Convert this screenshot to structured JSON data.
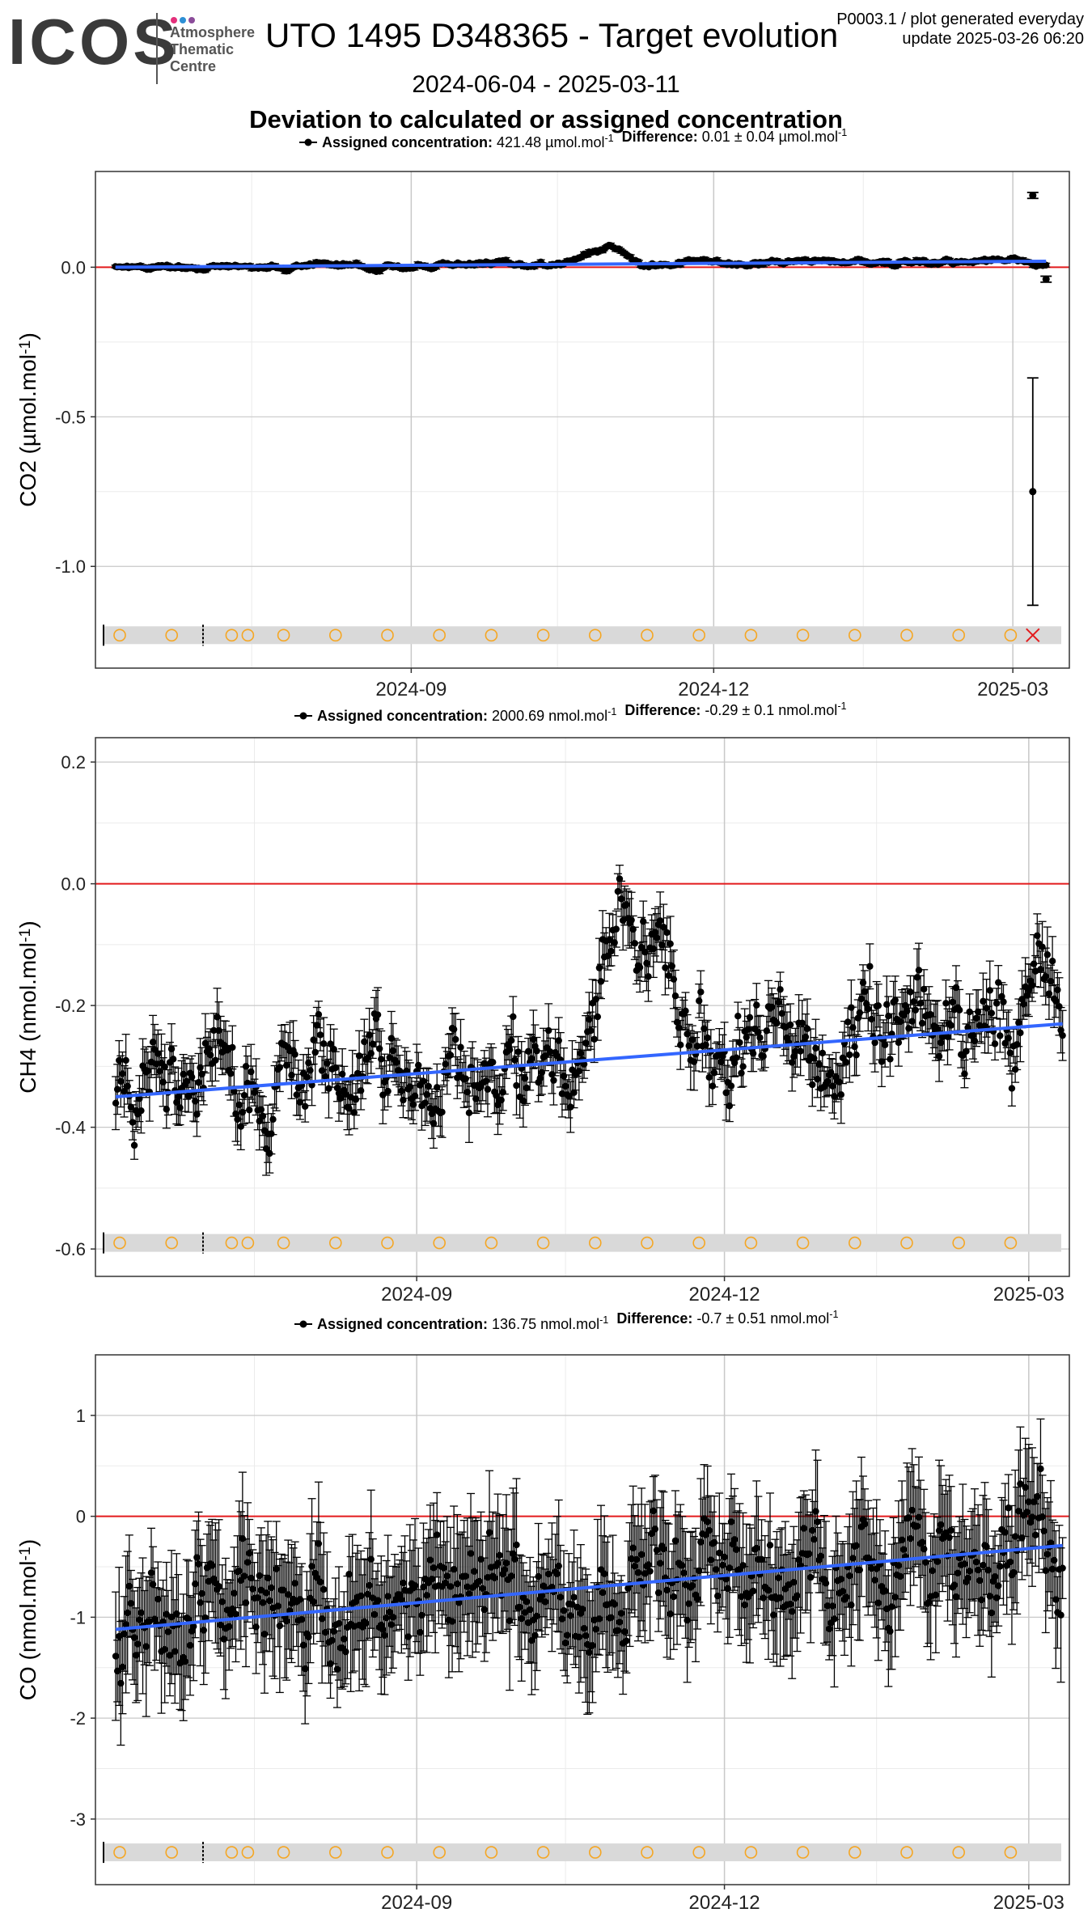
{
  "header": {
    "logo_text": "ICOS",
    "logo_sub_lines": [
      "Atmosphere",
      "Thematic",
      "Centre"
    ],
    "logo_dot_colors": [
      "#e4307b",
      "#2d8fd5",
      "#8b4c9a"
    ],
    "title": "UTO 1495 D348365 - Target evolution",
    "meta_line1": "P0003.1 / plot generated everyday",
    "meta_line2": "update  2025-03-26 06:20",
    "date_range": "2024-06-04 - 2025-03-11",
    "subtitle": "Deviation to calculated or assigned concentration"
  },
  "colors": {
    "points": "#000000",
    "zero_line": "#e31a1c",
    "trend": "#3366ff",
    "flag_band": "#d9d9d9",
    "flag_marker": "#f5a623",
    "flag_cross": "#e31a1c",
    "grid_major": "#c8c8c8",
    "grid_minor": "#ebebeb"
  },
  "chart_data": [
    {
      "type": "scatter",
      "ylabel": "CO2 (µmol.mol-1)",
      "legend_label": "Assigned concentration:",
      "legend_value": "421.48 µmol.mol-1",
      "legend_diff_label": "Difference:",
      "legend_diff_value": "0.01 ± 0.04 µmol.mol-1",
      "x_ticks": [
        "2024-09",
        "2024-12",
        "2025-03"
      ],
      "y_ticks": [
        0.0,
        -0.5,
        -1.0
      ],
      "y_tick_labels": [
        "0.0",
        "-0.5",
        "-1.0"
      ],
      "ylim": [
        -1.34,
        0.32
      ],
      "xlim": [
        "2024-05-29",
        "2025-03-18"
      ],
      "zero_line": 0,
      "trend": {
        "start": [
          "2024-06-04",
          0.0
        ],
        "end": [
          "2025-03-11",
          0.02
        ]
      },
      "series": {
        "base": 0.0,
        "drift": 0.02,
        "noise": 0.008,
        "err": 0.006,
        "bumps": [
          [
            "2024-11-01",
            0.05
          ],
          [
            "2024-10-25",
            0.03
          ]
        ]
      },
      "extra_points": [
        {
          "x": "2025-03-07",
          "y": 0.24,
          "err": 0.01
        },
        {
          "x": "2025-03-07",
          "y": -0.75,
          "err": 0.38
        },
        {
          "x": "2025-03-11",
          "y": -0.04,
          "err": 0.01
        }
      ],
      "flag_y": -1.23,
      "flag_cross_date": "2025-03-07"
    },
    {
      "type": "scatter",
      "ylabel": "CH4 (nmol.mol-1)",
      "legend_label": "Assigned concentration:",
      "legend_value": "2000.69 nmol.mol-1",
      "legend_diff_label": "Difference:",
      "legend_diff_value": "-0.29 ± 0.1 nmol.mol-1",
      "x_ticks": [
        "2024-09",
        "2024-12",
        "2025-03"
      ],
      "y_ticks": [
        0.2,
        0.0,
        -0.2,
        -0.4,
        -0.6
      ],
      "y_tick_labels": [
        "0.2",
        "0.0",
        "-0.2",
        "-0.4",
        "-0.6"
      ],
      "ylim": [
        -0.645,
        0.24
      ],
      "xlim": [
        "2024-05-29",
        "2025-03-13"
      ],
      "zero_line": 0,
      "trend": {
        "start": [
          "2024-06-04",
          -0.35
        ],
        "end": [
          "2025-03-11",
          -0.23
        ]
      },
      "series": {
        "base": -0.35,
        "drift": 0.12,
        "noise": 0.06,
        "err": 0.035,
        "bumps": [
          [
            "2024-11-01",
            0.28
          ],
          [
            "2024-11-12",
            0.18
          ],
          [
            "2024-07-05",
            0.1
          ],
          [
            "2025-03-05",
            0.17
          ]
        ]
      },
      "extra_points": [],
      "flag_y": -0.59,
      "flag_cross_date": ""
    },
    {
      "type": "scatter",
      "ylabel": "CO (nmol.mol-1)",
      "legend_label": "Assigned concentration:",
      "legend_value": "136.75 nmol.mol-1",
      "legend_diff_label": "Difference:",
      "legend_diff_value": "-0.7 ± 0.51 nmol.mol-1",
      "x_ticks": [
        "2024-09",
        "2024-12",
        "2025-03"
      ],
      "y_ticks": [
        1,
        0,
        -1,
        -2,
        -3
      ],
      "y_tick_labels": [
        "1",
        "0",
        "-1",
        "-2",
        "-3"
      ],
      "ylim": [
        -3.65,
        1.6
      ],
      "xlim": [
        "2024-05-29",
        "2025-03-13"
      ],
      "zero_line": 0,
      "trend": {
        "start": [
          "2024-06-04",
          -1.12
        ],
        "end": [
          "2025-03-11",
          -0.29
        ]
      },
      "series": {
        "base": -1.12,
        "drift": 0.83,
        "noise": 0.42,
        "err": 0.5,
        "bumps": []
      },
      "extra_points": [],
      "flag_y": -3.33,
      "flag_cross_date": ""
    }
  ]
}
